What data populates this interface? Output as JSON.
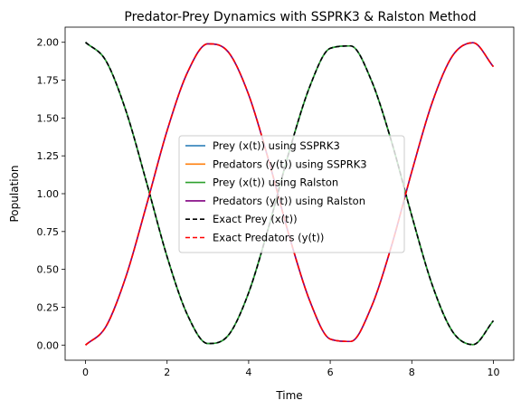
{
  "chart_data": {
    "type": "line",
    "title": "Predator-Prey Dynamics with SSPRK3 & Ralston Method",
    "xlabel": "Time",
    "ylabel": "Population",
    "xlim": [
      -0.5,
      10.5
    ],
    "ylim": [
      -0.1,
      2.1
    ],
    "xticks": [
      0,
      2,
      4,
      6,
      8,
      10
    ],
    "xtick_labels": [
      "0",
      "2",
      "4",
      "6",
      "8",
      "10"
    ],
    "yticks": [
      0.0,
      0.25,
      0.5,
      0.75,
      1.0,
      1.25,
      1.5,
      1.75,
      2.0
    ],
    "ytick_labels": [
      "0.00",
      "0.25",
      "0.50",
      "0.75",
      "1.00",
      "1.25",
      "1.50",
      "1.75",
      "2.00"
    ],
    "grid": false,
    "legend_position": "center",
    "x": [
      0,
      0.5,
      1,
      1.5,
      2,
      2.5,
      3,
      3.5,
      4,
      4.5,
      5,
      5.5,
      6,
      6.5,
      7,
      7.5,
      8,
      8.5,
      9,
      9.5,
      10
    ],
    "series": [
      {
        "name": "Prey (x(t)) using SSPRK3",
        "color": "#1f77b4",
        "style": "solid",
        "values": [
          2.0,
          1.878,
          1.54,
          1.071,
          0.584,
          0.199,
          0.01,
          0.064,
          0.346,
          0.789,
          1.284,
          1.709,
          1.96,
          1.976,
          1.754,
          1.347,
          0.854,
          0.398,
          0.089,
          0.003,
          0.161
        ]
      },
      {
        "name": "Predators (y(t)) using SSPRK3",
        "color": "#ff7f0e",
        "style": "solid",
        "values": [
          0.0,
          0.122,
          0.46,
          0.929,
          1.416,
          1.801,
          1.99,
          1.936,
          1.654,
          1.211,
          0.716,
          0.291,
          0.04,
          0.024,
          0.246,
          0.653,
          1.146,
          1.602,
          1.911,
          1.997,
          1.839
        ]
      },
      {
        "name": "Prey (x(t)) using Ralston",
        "color": "#2ca02c",
        "style": "solid",
        "values": [
          2.0,
          1.878,
          1.54,
          1.071,
          0.584,
          0.199,
          0.01,
          0.064,
          0.346,
          0.789,
          1.284,
          1.709,
          1.96,
          1.976,
          1.754,
          1.347,
          0.854,
          0.398,
          0.089,
          0.003,
          0.161
        ]
      },
      {
        "name": "Predators (y(t)) using Ralston",
        "color": "#800080",
        "style": "solid",
        "values": [
          0.0,
          0.122,
          0.46,
          0.929,
          1.416,
          1.801,
          1.99,
          1.936,
          1.654,
          1.211,
          0.716,
          0.291,
          0.04,
          0.024,
          0.246,
          0.653,
          1.146,
          1.602,
          1.911,
          1.997,
          1.839
        ]
      },
      {
        "name": "Exact Prey (x(t))",
        "color": "#000000",
        "style": "dashed",
        "values": [
          2.0,
          1.878,
          1.54,
          1.071,
          0.584,
          0.199,
          0.01,
          0.064,
          0.346,
          0.789,
          1.284,
          1.709,
          1.96,
          1.976,
          1.754,
          1.347,
          0.854,
          0.398,
          0.089,
          0.003,
          0.161
        ]
      },
      {
        "name": "Exact Predators (y(t))",
        "color": "#ff0000",
        "style": "dashed",
        "values": [
          0.0,
          0.122,
          0.46,
          0.929,
          1.416,
          1.801,
          1.99,
          1.936,
          1.654,
          1.211,
          0.716,
          0.291,
          0.04,
          0.024,
          0.246,
          0.653,
          1.146,
          1.602,
          1.911,
          1.997,
          1.839
        ]
      }
    ]
  }
}
